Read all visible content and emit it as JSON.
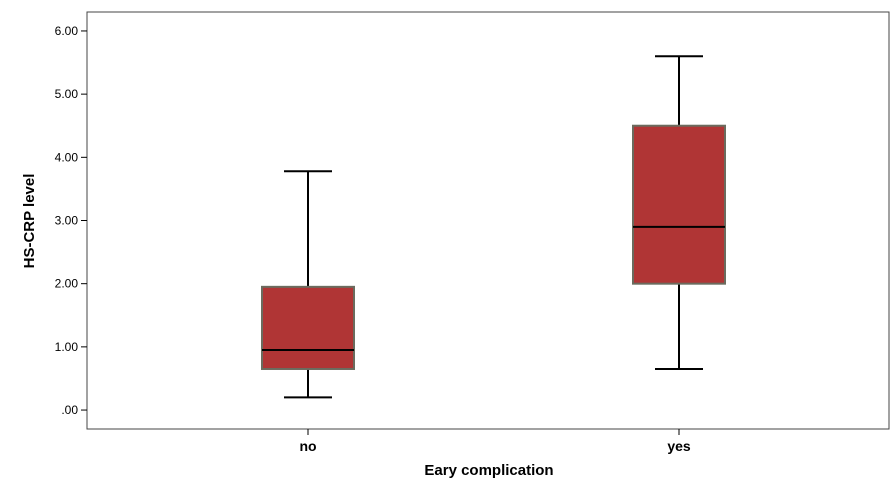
{
  "chart_data": {
    "type": "boxplot",
    "xlabel": "Eary complication",
    "ylabel": "HS-CRP level",
    "ylim": [
      -0.3,
      6.3
    ],
    "yticks": [
      0,
      1,
      2,
      3,
      4,
      5,
      6
    ],
    "ytick_labels": [
      ".00",
      "1.00",
      "2.00",
      "3.00",
      "4.00",
      "5.00",
      "6.00"
    ],
    "categories": [
      "no",
      "yes"
    ],
    "boxes": [
      {
        "category": "no",
        "min": 0.2,
        "q1": 0.65,
        "median": 0.95,
        "q3": 1.95,
        "max": 3.78
      },
      {
        "category": "yes",
        "min": 0.65,
        "q1": 2.0,
        "median": 2.9,
        "q3": 4.5,
        "max": 5.6
      }
    ],
    "box_color": "#b03535",
    "box_edge_color": "#6b6b5e",
    "grid": false,
    "legend": "none"
  }
}
